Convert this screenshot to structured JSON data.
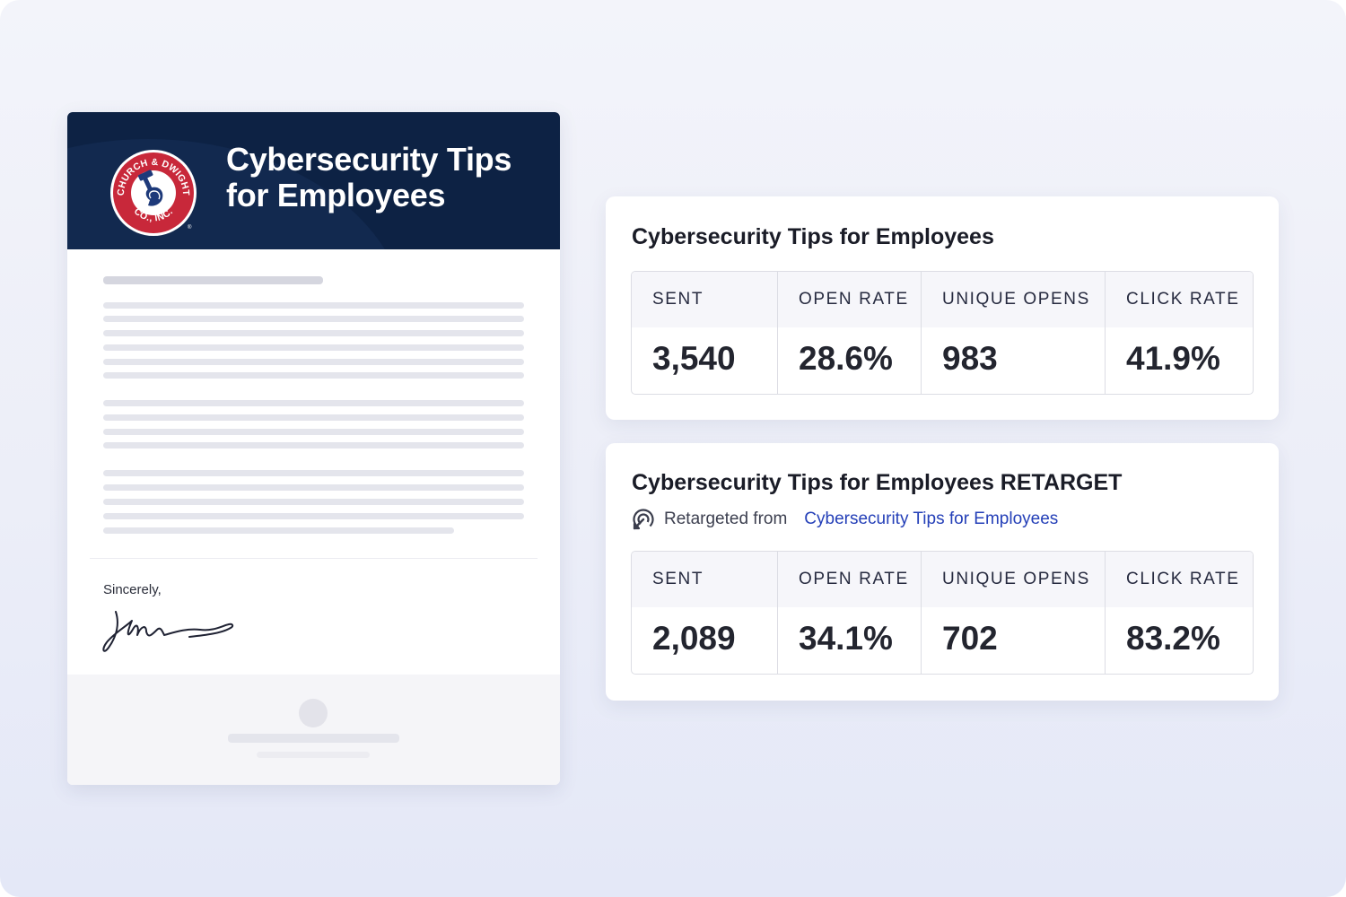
{
  "email": {
    "title": "Cybersecurity Tips for Employees",
    "logo": {
      "text_top": "CHURCH & DWIGHT",
      "text_bottom": "CO., INC.",
      "registered_mark": "®",
      "icon": "arm-and-hammer-logo"
    },
    "closing": "Sincerely,",
    "signature_icon": "handwritten-signature"
  },
  "campaigns": [
    {
      "title": "Cybersecurity Tips for Employees",
      "stats": [
        {
          "label": "SENT",
          "value": "3,540"
        },
        {
          "label": "OPEN RATE",
          "value": "28.6%"
        },
        {
          "label": "UNIQUE OPENS",
          "value": "983"
        },
        {
          "label": "CLICK RATE",
          "value": "41.9%"
        }
      ]
    },
    {
      "title": "Cybersecurity Tips for Employees RETARGET",
      "retargeted_label": "Retargeted from",
      "retargeted_link": "Cybersecurity Tips for Employees",
      "retarget_icon": "retarget-icon",
      "stats": [
        {
          "label": "SENT",
          "value": "2,089"
        },
        {
          "label": "OPEN RATE",
          "value": "34.1%"
        },
        {
          "label": "UNIQUE OPENS",
          "value": "702"
        },
        {
          "label": "CLICK RATE",
          "value": "83.2%"
        }
      ]
    }
  ],
  "colors": {
    "header_navy": "#0d2244",
    "logo_red": "#c8283a",
    "link_blue": "#2540b8"
  }
}
